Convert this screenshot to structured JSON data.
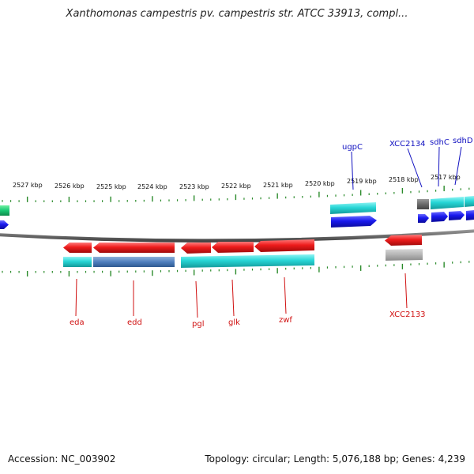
{
  "title": "Xanthomonas campestris pv. campestris str. ATCC 33913, compl...",
  "footer": {
    "accession": "Accession: NC_003902",
    "topology": "Topology: circular; Length: 5,076,188 bp; Genes: 4,239"
  },
  "colors": {
    "forward_cds": "#1a1aee",
    "reverse_cds": "#ee1c1c",
    "gene_feature": "#27d6d6",
    "ticks": "#2a8a2a",
    "backbone": "#777777",
    "label_forward": "#1010c0",
    "label_reverse": "#d01010"
  },
  "scale": {
    "unit": "kbp",
    "ticks": [
      {
        "kbp": 2527,
        "label": "2527 kbp"
      },
      {
        "kbp": 2526,
        "label": "2526 kbp"
      },
      {
        "kbp": 2525,
        "label": "2525 kbp"
      },
      {
        "kbp": 2524,
        "label": "2524 kbp"
      },
      {
        "kbp": 2523,
        "label": "2523 kbp"
      },
      {
        "kbp": 2522,
        "label": "2522 kbp"
      },
      {
        "kbp": 2521,
        "label": "2521 kbp"
      },
      {
        "kbp": 2520,
        "label": "2520 kbp"
      },
      {
        "kbp": 2519,
        "label": "2519 kbp"
      },
      {
        "kbp": 2518,
        "label": "2518 kbp"
      },
      {
        "kbp": 2517,
        "label": "2517 kbp"
      }
    ]
  },
  "genes_forward": [
    {
      "name": "ugpC",
      "label": "ugpC"
    },
    {
      "name": "XCC2134",
      "label": "XCC2134"
    },
    {
      "name": "sdhC",
      "label": "sdhC"
    },
    {
      "name": "sdhD",
      "label": "sdhD"
    }
  ],
  "genes_reverse": [
    {
      "name": "eda",
      "label": "eda"
    },
    {
      "name": "edd",
      "label": "edd"
    },
    {
      "name": "pgl",
      "label": "pgl"
    },
    {
      "name": "glk",
      "label": "glk"
    },
    {
      "name": "zwf",
      "label": "zwf"
    },
    {
      "name": "XCC2133",
      "label": "XCC2133"
    }
  ]
}
